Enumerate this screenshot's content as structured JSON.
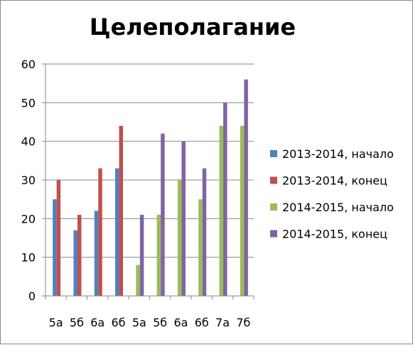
{
  "chart_data": {
    "type": "bar",
    "title": "Целеполагание",
    "categories": [
      "5а",
      "5б",
      "6а",
      "6б",
      "5а",
      "5б",
      "6а",
      "6б",
      "7а",
      "7б"
    ],
    "ylim": [
      0,
      60
    ],
    "yticks": [
      0,
      10,
      20,
      30,
      40,
      50,
      60
    ],
    "grid": true,
    "legend_position": "right",
    "series": [
      {
        "name": "2013-2014, начало",
        "color": "#4F81BD",
        "values": [
          25,
          17,
          22,
          33,
          null,
          null,
          null,
          null,
          null,
          null
        ]
      },
      {
        "name": "2013-2014, конец",
        "color": "#C0504D",
        "values": [
          30,
          21,
          33,
          44,
          null,
          null,
          null,
          null,
          null,
          null
        ]
      },
      {
        "name": "2014-2015, начало",
        "color": "#9BBB59",
        "values": [
          null,
          null,
          null,
          null,
          8,
          21,
          30,
          25,
          44,
          44
        ]
      },
      {
        "name": "2014-2015, конец",
        "color": "#8064A2",
        "values": [
          null,
          null,
          null,
          null,
          21,
          42,
          40,
          33,
          50,
          56
        ]
      }
    ]
  }
}
